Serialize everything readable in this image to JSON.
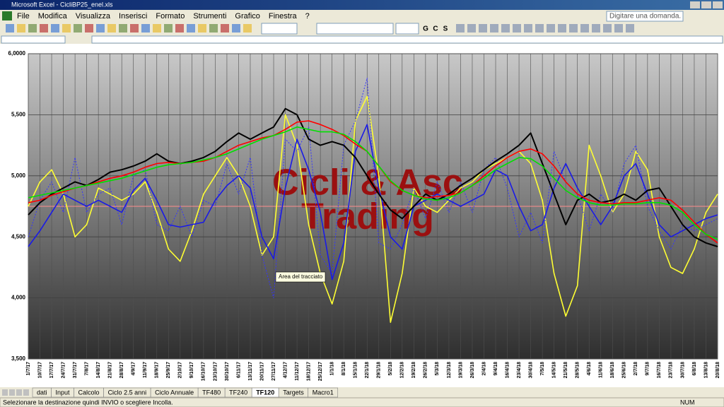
{
  "window": {
    "title": "Microsoft Excel - CicliBP25_enel.xls"
  },
  "menu": [
    "File",
    "Modifica",
    "Visualizza",
    "Inserisci",
    "Formato",
    "Strumenti",
    "Grafico",
    "Finestra",
    "?"
  ],
  "help_box": "Digitare una domanda.",
  "toolbar": {
    "format_buttons": [
      "G",
      "C",
      "S"
    ]
  },
  "chart_data": {
    "type": "line",
    "watermark": [
      "Cicli & Asc",
      "Trading"
    ],
    "tooltip": "Area del tracciato",
    "categories": [
      "1/7/17",
      "10/7/17",
      "17/7/17",
      "24/7/17",
      "31/7/17",
      "7/8/17",
      "14/8/17",
      "21/8/17",
      "28/8/17",
      "4/9/17",
      "11/9/17",
      "18/9/17",
      "25/9/17",
      "2/10/17",
      "9/10/17",
      "16/10/17",
      "23/10/17",
      "30/10/17",
      "6/11/17",
      "13/11/17",
      "20/11/17",
      "27/11/17",
      "4/12/17",
      "11/12/17",
      "18/12/17",
      "25/12/17",
      "1/1/18",
      "8/1/18",
      "15/1/18",
      "22/1/18",
      "29/1/18",
      "5/2/18",
      "12/2/18",
      "19/2/18",
      "26/2/18",
      "5/3/18",
      "12/3/18",
      "19/3/18",
      "26/3/18",
      "2/4/18",
      "9/4/18",
      "16/4/18",
      "23/4/18",
      "30/4/18",
      "7/5/18",
      "14/5/18",
      "21/5/18",
      "28/5/18",
      "4/6/18",
      "11/6/18",
      "18/6/18",
      "25/6/18",
      "2/7/18",
      "9/7/18",
      "16/7/18",
      "23/7/18",
      "30/7/18",
      "6/8/18",
      "13/8/18",
      "20/8/18"
    ],
    "ylim": [
      3.5,
      6.0
    ],
    "yticks": [
      {
        "value": 3.5,
        "label": "3,500"
      },
      {
        "value": 4.0,
        "label": "4,000"
      },
      {
        "value": 4.5,
        "label": "4,500"
      },
      {
        "value": 5.0,
        "label": "5,000"
      },
      {
        "value": 5.5,
        "label": "5,500"
      },
      {
        "value": 6.0,
        "label": "6,0000"
      }
    ],
    "grid": true,
    "ref_line": {
      "value": 4.75,
      "color": "#ff8c8c"
    },
    "series": [
      {
        "color": "#ffff33",
        "width": 1.6,
        "style": "solid",
        "values": [
          4.75,
          4.95,
          5.05,
          4.85,
          4.5,
          4.6,
          4.9,
          4.85,
          4.8,
          4.85,
          4.95,
          4.7,
          4.4,
          4.3,
          4.55,
          4.85,
          5.0,
          5.15,
          5.0,
          4.75,
          4.35,
          4.5,
          5.5,
          5.25,
          4.6,
          4.2,
          3.95,
          4.3,
          5.45,
          5.65,
          5.0,
          3.8,
          4.2,
          4.9,
          4.75,
          4.7,
          4.8,
          4.9,
          4.95,
          5.05,
          5.1,
          5.15,
          5.2,
          5.1,
          4.8,
          4.2,
          3.85,
          4.1,
          5.25,
          5.0,
          4.7,
          4.85,
          5.2,
          5.05,
          4.5,
          4.25,
          4.2,
          4.4,
          4.7,
          4.85
        ]
      },
      {
        "color": "#3333ff",
        "width": 1,
        "style": "dotted",
        "values": [
          4.5,
          4.8,
          4.95,
          4.7,
          5.15,
          4.7,
          4.85,
          4.9,
          4.6,
          5.0,
          5.05,
          4.6,
          4.55,
          4.75,
          4.5,
          4.8,
          4.75,
          5.1,
          4.85,
          5.15,
          4.35,
          4.0,
          5.3,
          5.2,
          5.4,
          4.35,
          4.2,
          5.25,
          5.45,
          5.8,
          4.45,
          4.4,
          4.6,
          4.9,
          4.65,
          4.95,
          4.7,
          4.95,
          4.7,
          5.05,
          5.15,
          4.9,
          4.5,
          4.7,
          4.45,
          5.2,
          4.95,
          4.85,
          4.55,
          4.85,
          4.7,
          5.1,
          5.25,
          4.75,
          4.55,
          4.4,
          4.6,
          4.55,
          4.6,
          4.65
        ]
      },
      {
        "color": "#1a1ae6",
        "width": 1.6,
        "style": "solid",
        "values": [
          4.42,
          4.55,
          4.7,
          4.85,
          4.8,
          4.75,
          4.8,
          4.75,
          4.7,
          4.88,
          4.98,
          4.8,
          4.6,
          4.58,
          4.6,
          4.62,
          4.8,
          4.92,
          5.0,
          4.9,
          4.5,
          4.32,
          4.9,
          5.3,
          5.05,
          4.7,
          4.15,
          4.45,
          5.2,
          5.42,
          4.9,
          4.5,
          4.4,
          4.75,
          4.8,
          4.85,
          4.8,
          4.75,
          4.8,
          4.85,
          5.05,
          5.0,
          4.75,
          4.55,
          4.6,
          4.9,
          5.1,
          4.9,
          4.75,
          4.6,
          4.75,
          5.0,
          5.1,
          4.85,
          4.6,
          4.5,
          4.55,
          4.6,
          4.65,
          4.68
        ]
      },
      {
        "color": "#000000",
        "width": 2,
        "style": "solid",
        "values": [
          4.68,
          4.78,
          4.85,
          4.9,
          4.95,
          4.92,
          4.97,
          5.03,
          5.05,
          5.08,
          5.12,
          5.18,
          5.12,
          5.1,
          5.12,
          5.15,
          5.2,
          5.28,
          5.35,
          5.3,
          5.35,
          5.4,
          5.55,
          5.5,
          5.3,
          5.25,
          5.28,
          5.25,
          5.15,
          5.0,
          4.85,
          4.72,
          4.65,
          4.75,
          4.85,
          4.8,
          4.85,
          4.92,
          4.98,
          5.05,
          5.12,
          5.18,
          5.25,
          5.35,
          5.1,
          4.85,
          4.6,
          4.8,
          4.85,
          4.78,
          4.8,
          4.85,
          4.8,
          4.88,
          4.9,
          4.75,
          4.6,
          4.5,
          4.45,
          4.42
        ]
      },
      {
        "color": "#ff0000",
        "width": 1.6,
        "style": "solid",
        "values": [
          4.78,
          4.8,
          4.84,
          4.87,
          4.9,
          4.92,
          4.95,
          4.98,
          5.0,
          5.03,
          5.07,
          5.1,
          5.11,
          5.1,
          5.11,
          5.12,
          5.15,
          5.2,
          5.25,
          5.28,
          5.31,
          5.33,
          5.38,
          5.44,
          5.45,
          5.42,
          5.38,
          5.33,
          5.26,
          5.2,
          5.08,
          4.95,
          4.88,
          4.84,
          4.82,
          4.83,
          4.84,
          4.86,
          4.92,
          5.0,
          5.08,
          5.15,
          5.2,
          5.22,
          5.18,
          5.08,
          4.95,
          4.85,
          4.8,
          4.78,
          4.77,
          4.78,
          4.78,
          4.8,
          4.82,
          4.8,
          4.72,
          4.62,
          4.52,
          4.45
        ]
      },
      {
        "color": "#00e000",
        "width": 1.6,
        "style": "solid",
        "values": [
          4.82,
          4.84,
          4.86,
          4.88,
          4.9,
          4.92,
          4.94,
          4.96,
          4.98,
          5.01,
          5.04,
          5.07,
          5.09,
          5.1,
          5.11,
          5.13,
          5.15,
          5.18,
          5.22,
          5.26,
          5.3,
          5.33,
          5.36,
          5.4,
          5.38,
          5.36,
          5.36,
          5.34,
          5.28,
          5.2,
          5.08,
          4.96,
          4.88,
          4.84,
          4.81,
          4.8,
          4.82,
          4.86,
          4.92,
          4.98,
          5.05,
          5.1,
          5.15,
          5.14,
          5.08,
          4.98,
          4.88,
          4.82,
          4.78,
          4.76,
          4.76,
          4.77,
          4.77,
          4.78,
          4.78,
          4.76,
          4.7,
          4.6,
          4.52,
          4.48
        ]
      }
    ]
  },
  "sheet_tabs": [
    "dati",
    "Input",
    "Calcolo",
    "Ciclo 2.5 anni",
    "Ciclo Annuale",
    "TF480",
    "TF240",
    "TF120",
    "Targets",
    "Macro1"
  ],
  "active_tab": 7,
  "status": {
    "message": "Selezionare la destinazione quindi INVIO o scegliere Incolla.",
    "indicator": "NUM"
  }
}
